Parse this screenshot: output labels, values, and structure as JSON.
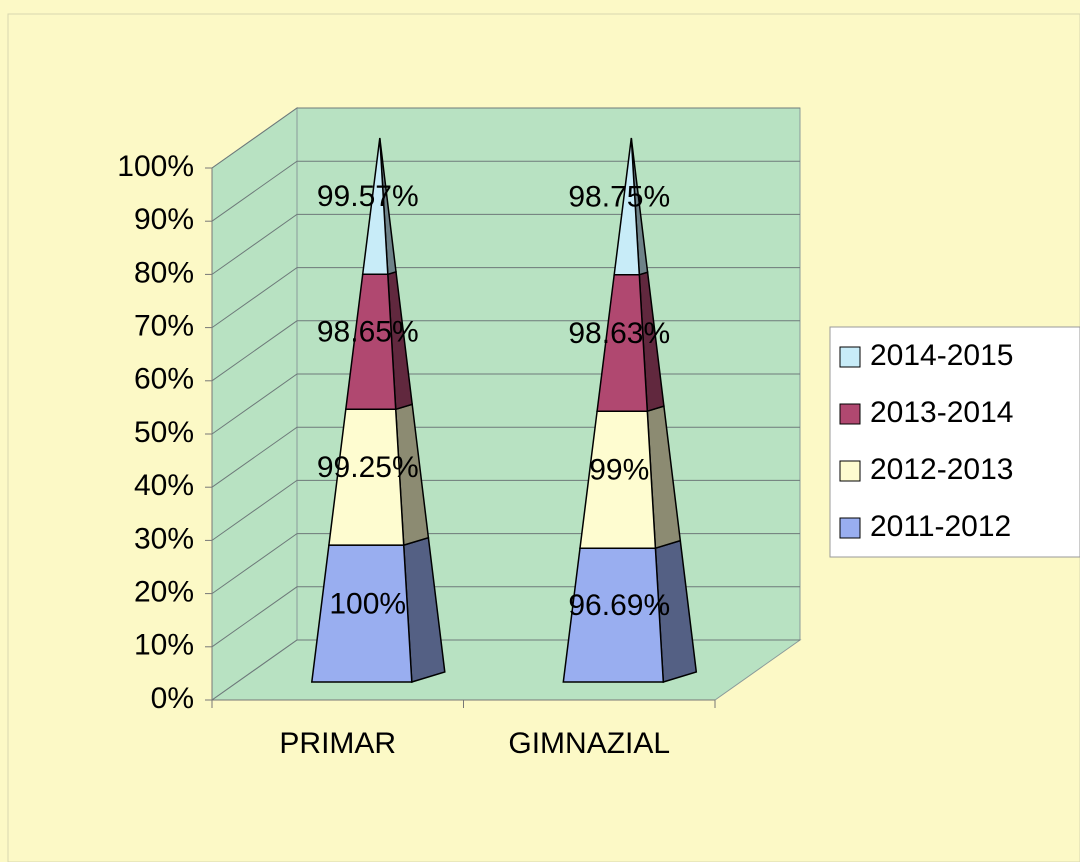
{
  "chart_data": {
    "type": "pyramid_stacked_percent",
    "categories": [
      "PRIMAR",
      "GIMNAZIAL"
    ],
    "series": [
      {
        "name": "2011-2012",
        "color": "#99aef0",
        "values": [
          100,
          96.69
        ],
        "value_labels": [
          "100%",
          "96.69%"
        ]
      },
      {
        "name": "2012-2013",
        "color": "#fefcd0",
        "values": [
          99.25,
          99
        ],
        "value_labels": [
          "99.25%",
          "99%"
        ]
      },
      {
        "name": "2013-2014",
        "color": "#b04870",
        "values": [
          98.65,
          98.63
        ],
        "value_labels": [
          "98.65%",
          "98.63%"
        ]
      },
      {
        "name": "2014-2015",
        "color": "#c8ecf8",
        "values": [
          99.57,
          98.75
        ],
        "value_labels": [
          "99.57%",
          "98.75%"
        ]
      }
    ],
    "ylim": [
      0,
      100
    ],
    "yticks": [
      {
        "value": 0,
        "label": "0%"
      },
      {
        "value": 10,
        "label": "10%"
      },
      {
        "value": 20,
        "label": "20%"
      },
      {
        "value": 30,
        "label": "30%"
      },
      {
        "value": 40,
        "label": "40%"
      },
      {
        "value": 50,
        "label": "50%"
      },
      {
        "value": 60,
        "label": "60%"
      },
      {
        "value": 70,
        "label": "70%"
      },
      {
        "value": 80,
        "label": "80%"
      },
      {
        "value": 90,
        "label": "90%"
      },
      {
        "value": 100,
        "label": "100%"
      }
    ],
    "grid": true,
    "legend": "right"
  }
}
